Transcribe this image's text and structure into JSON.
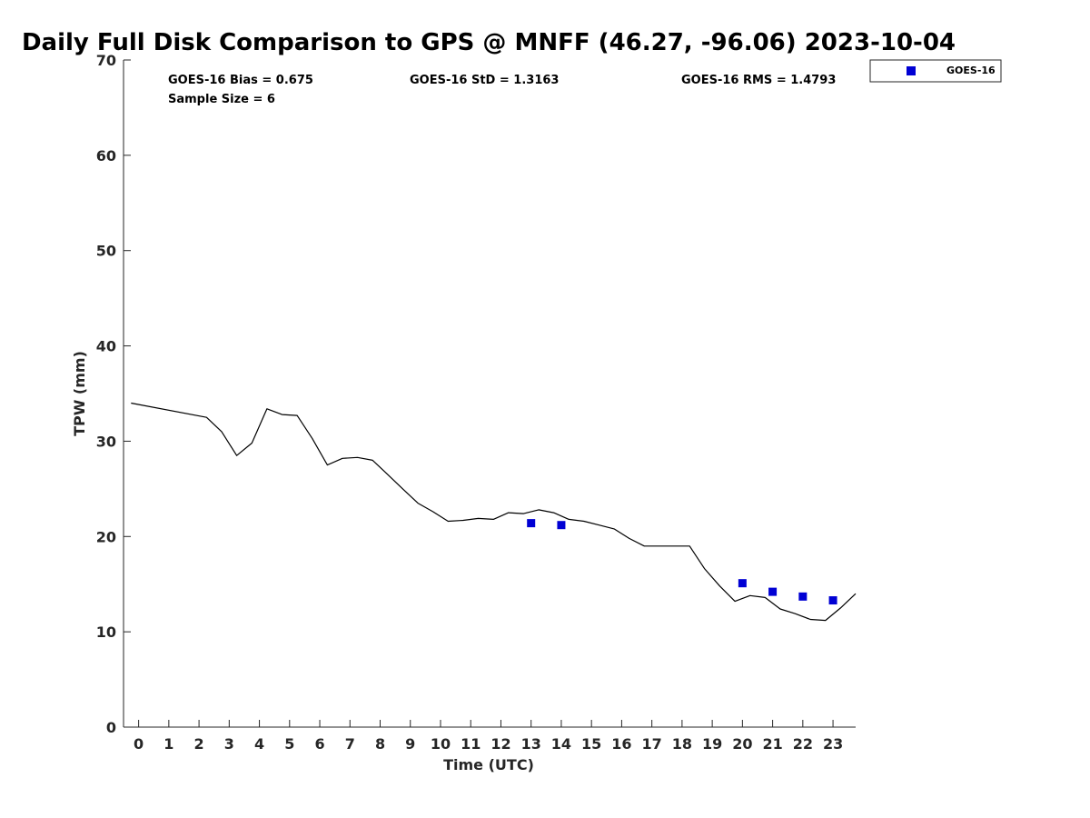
{
  "chart_data": {
    "type": "line+scatter",
    "title": "Daily Full Disk Comparison to GPS @ MNFF (46.27, -96.06) 2023-10-04",
    "xlabel": "Time (UTC)",
    "ylabel": "TPW (mm)",
    "xlim": [
      -0.5,
      23.75
    ],
    "ylim": [
      0,
      70
    ],
    "x_ticks": [
      0,
      1,
      2,
      3,
      4,
      5,
      6,
      7,
      8,
      9,
      10,
      11,
      12,
      13,
      14,
      15,
      16,
      17,
      18,
      19,
      20,
      21,
      22,
      23
    ],
    "y_ticks": [
      0,
      10,
      20,
      30,
      40,
      50,
      60,
      70
    ],
    "grid": false,
    "legend_position": "top-right, outside plot area",
    "stats": {
      "bias": "GOES-16 Bias = 0.675",
      "sample_size": "Sample Size = 6",
      "std": "GOES-16 StD = 1.3163",
      "rms": "GOES-16 RMS = 1.4793"
    },
    "series": [
      {
        "name": "GPS",
        "kind": "line",
        "color": "#000000",
        "x": [
          -0.25,
          2.25,
          2.75,
          3.25,
          3.75,
          4.25,
          4.75,
          5.25,
          5.75,
          6.25,
          6.75,
          7.25,
          7.75,
          8.25,
          8.75,
          9.25,
          9.75,
          10.25,
          10.75,
          11.25,
          11.75,
          12.25,
          12.75,
          13.25,
          13.75,
          14.25,
          14.75,
          15.25,
          15.75,
          16.25,
          16.75,
          17.25,
          17.75,
          18.25,
          18.75,
          19.25,
          19.75,
          20.25,
          20.75,
          21.25,
          21.75,
          22.25,
          22.75,
          23.25,
          23.75
        ],
        "y": [
          34.0,
          32.5,
          31.0,
          28.5,
          29.8,
          33.4,
          32.8,
          32.7,
          30.3,
          27.5,
          28.2,
          28.3,
          28.0,
          26.5,
          25.0,
          23.5,
          22.6,
          21.6,
          21.7,
          21.9,
          21.8,
          22.5,
          22.4,
          22.8,
          22.5,
          21.8,
          21.6,
          21.2,
          20.8,
          19.8,
          19.0,
          19.0,
          19.0,
          19.0,
          16.6,
          14.8,
          13.2,
          13.8,
          13.6,
          12.4,
          11.9,
          11.3,
          11.2,
          12.5,
          14.0
        ]
      },
      {
        "name": "GOES-16",
        "kind": "scatter",
        "marker": "square",
        "color": "#0000d4",
        "x": [
          13,
          14,
          20,
          21,
          22,
          23
        ],
        "y": [
          21.4,
          21.2,
          15.1,
          14.2,
          13.7,
          13.3
        ]
      }
    ]
  }
}
